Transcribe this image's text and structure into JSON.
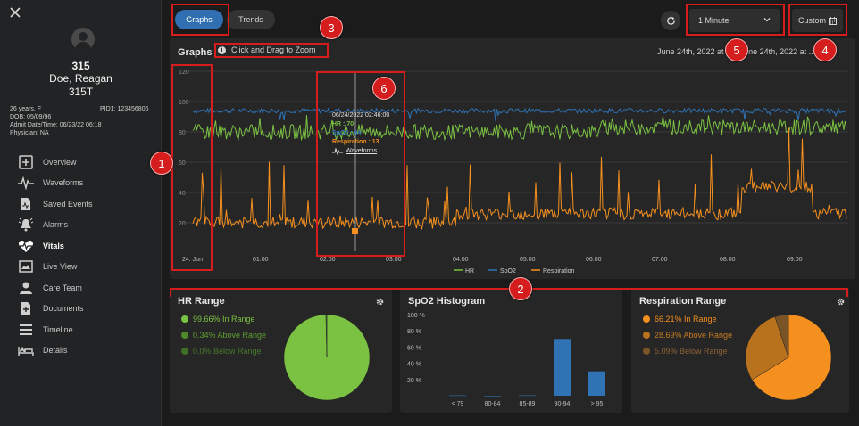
{
  "patient": {
    "bed": "315",
    "name": "Doe, Reagan",
    "room": "315T",
    "age_sex": "26 years, F",
    "pid": "PID1: 123456806",
    "dob": "DOB: 05/09/96",
    "admit": "Admit Date/Time: 06/23/22 06:18",
    "physician": "Physician: NA"
  },
  "nav": [
    {
      "label": "Overview",
      "icon": "overview-icon"
    },
    {
      "label": "Waveforms",
      "icon": "waveform-icon"
    },
    {
      "label": "Saved Events",
      "icon": "saved-events-icon"
    },
    {
      "label": "Alarms",
      "icon": "alarm-bell-icon"
    },
    {
      "label": "Vitals",
      "icon": "heart-pulse-icon",
      "active": true
    },
    {
      "label": "Live View",
      "icon": "live-view-icon"
    },
    {
      "label": "Care Team",
      "icon": "care-team-icon"
    },
    {
      "label": "Documents",
      "icon": "documents-icon"
    },
    {
      "label": "Timeline",
      "icon": "timeline-icon"
    },
    {
      "label": "Details",
      "icon": "details-icon"
    }
  ],
  "toolbar": {
    "graphs_label": "Graphs",
    "trends_label": "Trends",
    "interval_value": "1 Minute",
    "custom_label": "Custom"
  },
  "graph": {
    "title": "Graphs",
    "zoom_hint": "Click and Drag to Zoom",
    "date_range": "June 24th, 2022 at ... - June 24th, 2022 at ...8",
    "tooltip": {
      "date": "06/24/2022 02:46:00",
      "hr": "HR : 70",
      "spo2": "SpO2 : 94",
      "resp": "Respiration : 13",
      "waveforms": "Waveforms"
    }
  },
  "chart_data": {
    "type": "line",
    "x_tick_labels": [
      "24. Jun",
      "01:00",
      "02:00",
      "03:00",
      "04:00",
      "05:00",
      "06:00",
      "07:00",
      "08:00",
      "09:00"
    ],
    "y_tick_labels": [
      "20",
      "40",
      "60",
      "80",
      "100",
      "120"
    ],
    "ylim": [
      0,
      120
    ],
    "series": [
      {
        "name": "HR",
        "color": "#7bc142",
        "approx_range": [
          70,
          95
        ],
        "typical": 80
      },
      {
        "name": "SpO2",
        "color": "#2f73b5",
        "approx_range": [
          88,
          98
        ],
        "typical": 94
      },
      {
        "name": "Respiration",
        "color": "#f5901e",
        "approx_range": [
          10,
          90
        ],
        "typical": 20
      }
    ],
    "grid": true,
    "legend": "bottom"
  },
  "hr_range": {
    "title": "HR Range",
    "items": [
      {
        "label": "99.66% In Range",
        "value": 99.66,
        "color": "#7bc142"
      },
      {
        "label": "0.34% Above Range",
        "value": 0.34,
        "color": "#4e8a2b"
      },
      {
        "label": "0.0% Below Range",
        "value": 0.0,
        "color": "#3f6e25"
      }
    ]
  },
  "spo2_histogram": {
    "title": "SpO2 Histogram",
    "y_labels": [
      "100 %",
      "80 %",
      "60 %",
      "40 %",
      "20 %"
    ],
    "categories": [
      "< 79",
      "80-84",
      "85-89",
      "90-94",
      "> 95"
    ],
    "values": [
      0.5,
      0,
      0.5,
      70,
      30
    ],
    "bar_color": "#2f73b5"
  },
  "resp_range": {
    "title": "Respiration Range",
    "items": [
      {
        "label": "66.21% In Range",
        "value": 66.21,
        "color": "#f5901e"
      },
      {
        "label": "28.69% Above Range",
        "value": 28.69,
        "color": "#b8711c"
      },
      {
        "label": "5.09% Below Range",
        "value": 5.09,
        "color": "#7b5426"
      }
    ]
  },
  "markers": [
    "1",
    "2",
    "3",
    "4",
    "5",
    "6"
  ]
}
